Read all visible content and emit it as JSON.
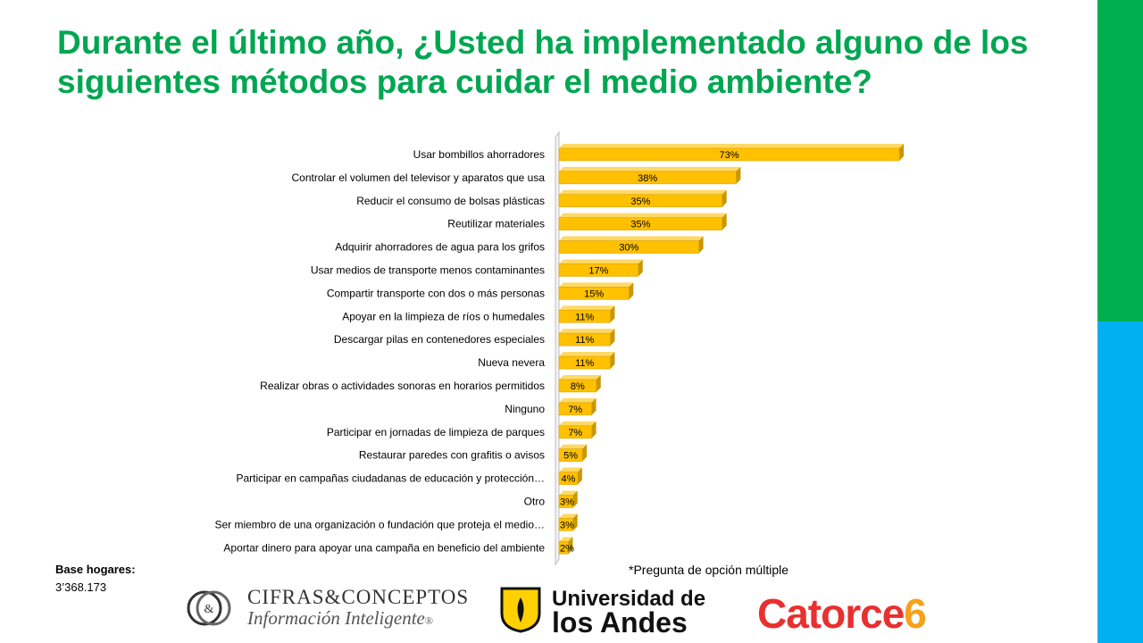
{
  "title": "Durante el último año, ¿Usted ha implementado alguno de los siguientes métodos para cuidar el medio ambiente?",
  "footnote": "*Pregunta de opción múltiple",
  "base": {
    "label": "Base hogares:",
    "value": "3’368.173"
  },
  "colors": {
    "title": "#00a651",
    "bar": "#ffc000",
    "bar_side": "#c99700",
    "bar_top": "#ffd966",
    "side_green": "#00b050",
    "side_blue": "#00b0f0"
  },
  "logos": {
    "cifras": {
      "name": "CIFRAS&CONCEPTOS",
      "tagline": "Información Inteligente",
      "registered": "®"
    },
    "andes": {
      "line1": "Universidad de",
      "line2": "los Andes"
    },
    "catorce": {
      "text": "Catorce",
      "number": "6"
    }
  },
  "chart_data": {
    "type": "bar",
    "orientation": "horizontal",
    "categories": [
      "Usar bombillos ahorradores",
      "Controlar el volumen del televisor y aparatos que usa",
      "Reducir el consumo de bolsas plásticas",
      "Reutilizar materiales",
      "Adquirir ahorradores de agua para los grifos",
      "Usar medios de transporte menos contaminantes",
      "Compartir transporte con dos o más personas",
      "Apoyar en la limpieza de ríos o humedales",
      "Descargar pilas en contenedores especiales",
      "Nueva nevera",
      "Realizar obras o actividades sonoras en horarios permitidos",
      "Ninguno",
      "Participar en jornadas de limpieza de parques",
      "Restaurar paredes con grafitis o avisos",
      "Participar en campañas ciudadanas de educación y protección…",
      "Otro",
      "Ser miembro de una organización o fundación que proteja el medio…",
      "Aportar dinero para apoyar una campaña en beneficio del ambiente"
    ],
    "values": [
      73,
      38,
      35,
      35,
      30,
      17,
      15,
      11,
      11,
      11,
      8,
      7,
      7,
      5,
      4,
      3,
      3,
      2
    ],
    "value_labels": [
      "73%",
      "38%",
      "35%",
      "35%",
      "30%",
      "17%",
      "15%",
      "11%",
      "11%",
      "11%",
      "8%",
      "7%",
      "7%",
      "5%",
      "4%",
      "3%",
      "3%",
      "2%"
    ],
    "unit": "%",
    "xlim": [
      0,
      100
    ],
    "grid": false,
    "style": "3d"
  }
}
